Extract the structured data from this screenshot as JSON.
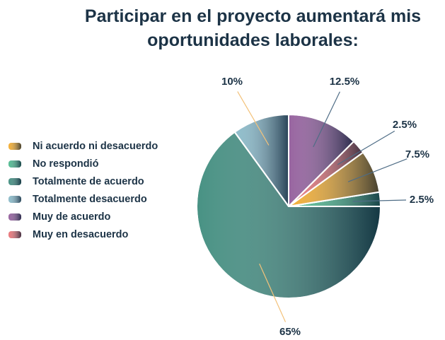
{
  "chart_data": {
    "type": "pie",
    "title": "Participar en el proyecto aumentará mis oportunidades laborales:",
    "categories": [
      "Ni acuerdo ni desacuerdo",
      "No respondió",
      "Totalmente de acuerdo",
      "Totalmente desacuerdo",
      "Muy de acuerdo",
      "Muy en desacuerdo"
    ],
    "values": [
      7.5,
      2.5,
      65,
      10,
      12.5,
      2.5
    ],
    "value_labels": [
      "7.5%",
      "2.5%",
      "65%",
      "10%",
      "12.5%",
      "2.5%"
    ],
    "colors": [
      "#f3a51c",
      "#3db384",
      "#2f8373",
      "#7fb4c4",
      "#8a4f93",
      "#e8666a"
    ],
    "legend": "left"
  }
}
